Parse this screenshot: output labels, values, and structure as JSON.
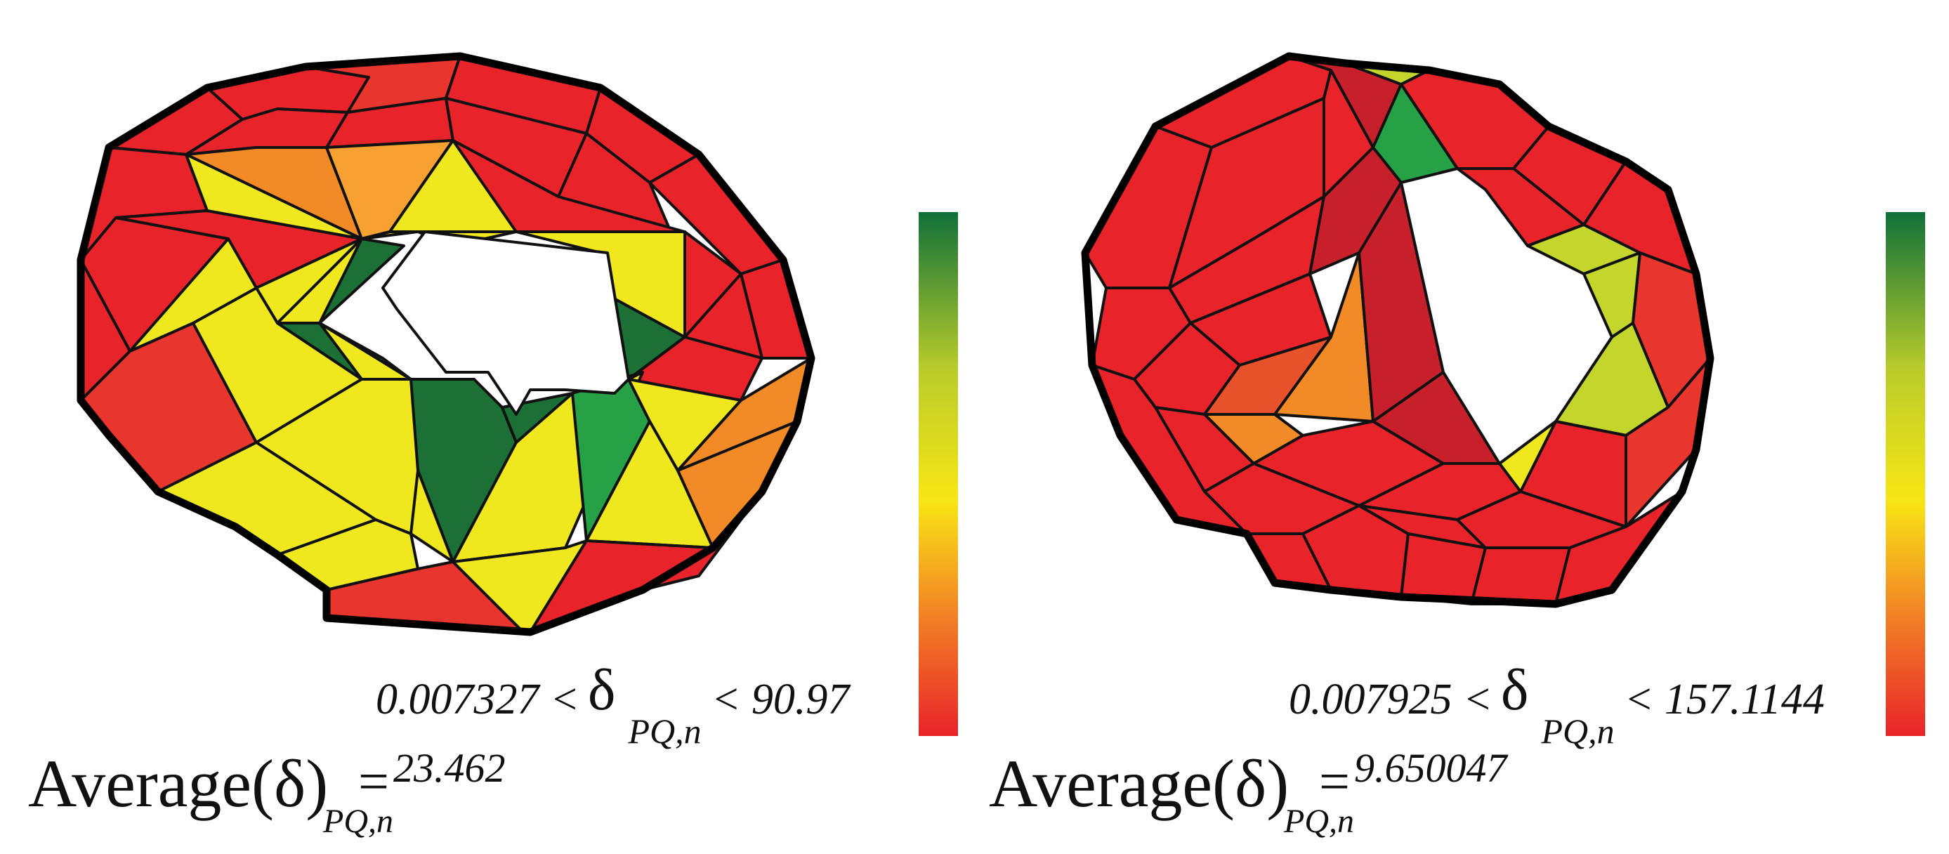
{
  "panels": [
    {
      "range_min": "0.007327 <",
      "range_symbol": "δ",
      "range_subscript": "PQ,n",
      "range_max": "< 90.97",
      "avg_word": "Average",
      "avg_symbol": "(δ)",
      "avg_eq": "=",
      "avg_subscript": "PQ,n",
      "avg_value": "23.462"
    },
    {
      "range_min": "0.007925 <",
      "range_symbol": "δ",
      "range_subscript": "PQ,n",
      "range_max": "< 157.1144",
      "avg_word": "Average",
      "avg_symbol": "(δ)",
      "avg_eq": "=",
      "avg_subscript": "PQ,n",
      "avg_value": "9.650047"
    }
  ],
  "colors": {
    "red": "#e8242a",
    "dark_red": "#c8202a",
    "orange": "#f28a25",
    "light_orange": "#f7a133",
    "yellow": "#f0e81e",
    "yellow_green": "#c4d62b",
    "green": "#26a146",
    "dark_green": "#1a7035",
    "colorbar_stops": [
      "#e8242a",
      "#f28a25",
      "#f7e615",
      "#b9cc2b",
      "#10703a"
    ]
  }
}
